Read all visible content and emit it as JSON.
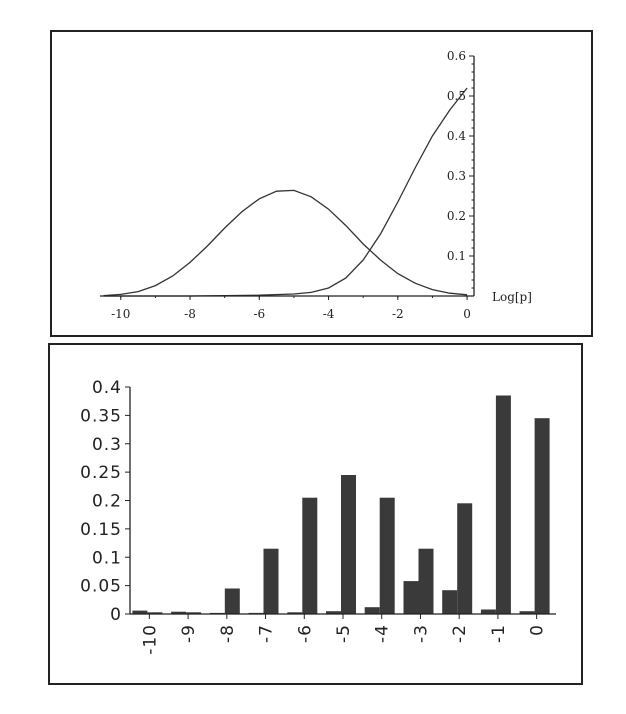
{
  "chart_data": [
    {
      "type": "line",
      "title": "",
      "xlabel": "Log[p]",
      "ylabel": "",
      "xlim": [
        -10.6,
        0.2
      ],
      "ylim": [
        0,
        0.6
      ],
      "grid": false,
      "x_ticks": [
        "-10",
        "-8",
        "-6",
        "-4",
        "-2",
        "0"
      ],
      "y_ticks": [
        "0.1",
        "0.2",
        "0.3",
        "0.4",
        "0.5",
        "0.6"
      ],
      "series": [
        {
          "x": [
            -10.5,
            -10,
            -9.5,
            -9,
            -8.5,
            -8,
            -7.5,
            -7,
            -6.5,
            -6,
            -5.5,
            -5,
            -4.5,
            -4,
            -3.5,
            -3,
            -2.5,
            -2,
            -1.5,
            -1,
            -0.5,
            0
          ],
          "y": [
            0.001,
            0.004,
            0.011,
            0.026,
            0.05,
            0.084,
            0.125,
            0.17,
            0.211,
            0.243,
            0.262,
            0.264,
            0.248,
            0.217,
            0.176,
            0.13,
            0.09,
            0.056,
            0.032,
            0.016,
            0.007,
            0.003
          ]
        },
        {
          "x": [
            -10.5,
            -9,
            -8,
            -7,
            -6,
            -5,
            -4.5,
            -4,
            -3.5,
            -3,
            -2.5,
            -2,
            -1.5,
            -1,
            -0.5,
            0
          ],
          "y": [
            0,
            0,
            0,
            0.001,
            0.002,
            0.005,
            0.009,
            0.02,
            0.045,
            0.09,
            0.155,
            0.235,
            0.32,
            0.4,
            0.465,
            0.52
          ]
        }
      ]
    },
    {
      "type": "bar",
      "title": "",
      "xlabel": "",
      "ylabel": "",
      "ylim": [
        0,
        0.4
      ],
      "grid": false,
      "categories": [
        "-10",
        "-9",
        "-8",
        "-7",
        "-6",
        "-5",
        "-4",
        "-3",
        "-2",
        "-1",
        "0"
      ],
      "y_ticks": [
        "0",
        "0.05",
        "0.1",
        "0.15",
        "0.2",
        "0.25",
        "0.3",
        "0.35",
        "0.4"
      ],
      "series": [
        {
          "values": [
            0.003,
            0.003,
            0.045,
            0.115,
            0.205,
            0.245,
            0.205,
            0.115,
            0.195,
            0.385,
            0.345
          ]
        },
        {
          "values": [
            0.006,
            0.004,
            0.002,
            0.002,
            0.003,
            0.005,
            0.012,
            0.058,
            0.042,
            0.008,
            0.005
          ]
        }
      ]
    }
  ]
}
